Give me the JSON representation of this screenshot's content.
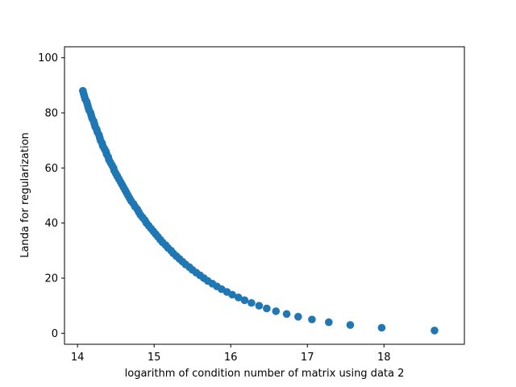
{
  "chart_data": {
    "type": "scatter",
    "title": "",
    "xlabel": "logarithm of condition number of matrix using data 2",
    "ylabel": "Landa for regularization",
    "xlim": [
      13.83,
      19.05
    ],
    "ylim": [
      -4.0,
      104.0
    ],
    "xticks": [
      14,
      15,
      16,
      17,
      18
    ],
    "yticks": [
      0,
      20,
      40,
      60,
      80,
      100
    ],
    "grid": false,
    "legend": "none",
    "marker_color": "#1f77b4",
    "points_x": [
      18.66,
      17.97,
      17.56,
      17.28,
      17.06,
      16.88,
      16.73,
      16.59,
      16.47,
      16.37,
      16.27,
      16.18,
      16.1,
      16.02,
      15.95,
      15.88,
      15.82,
      15.76,
      15.7,
      15.65,
      15.6,
      15.55,
      15.5,
      15.46,
      15.41,
      15.37,
      15.33,
      15.29,
      15.25,
      15.22,
      15.18,
      15.15,
      15.11,
      15.08,
      15.05,
      15.02,
      14.99,
      14.96,
      14.93,
      14.9,
      14.88,
      14.85,
      14.82,
      14.8,
      14.78,
      14.75,
      14.73,
      14.7,
      14.68,
      14.66,
      14.64,
      14.62,
      14.6,
      14.58,
      14.56,
      14.54,
      14.52,
      14.5,
      14.48,
      14.47,
      14.45,
      14.43,
      14.41,
      14.4,
      14.38,
      14.37,
      14.35,
      14.33,
      14.32,
      14.3,
      14.29,
      14.28,
      14.26,
      14.25,
      14.23,
      14.22,
      14.21,
      14.19,
      14.18,
      14.17,
      14.15,
      14.14,
      14.13,
      14.12,
      14.1,
      14.09,
      14.08,
      14.07
    ],
    "points_y": [
      1,
      2,
      3,
      4,
      5,
      6,
      7,
      8,
      9,
      10,
      11,
      12,
      13,
      14,
      15,
      16,
      17,
      18,
      19,
      20,
      21,
      22,
      23,
      24,
      25,
      26,
      27,
      28,
      29,
      30,
      31,
      32,
      33,
      34,
      35,
      36,
      37,
      38,
      39,
      40,
      41,
      42,
      43,
      44,
      45,
      46,
      47,
      48,
      49,
      50,
      51,
      52,
      53,
      54,
      55,
      56,
      57,
      58,
      59,
      60,
      61,
      62,
      63,
      64,
      65,
      66,
      67,
      68,
      69,
      70,
      71,
      72,
      73,
      74,
      75,
      76,
      77,
      78,
      79,
      80,
      81,
      82,
      83,
      84,
      85,
      86,
      87,
      88
    ]
  }
}
